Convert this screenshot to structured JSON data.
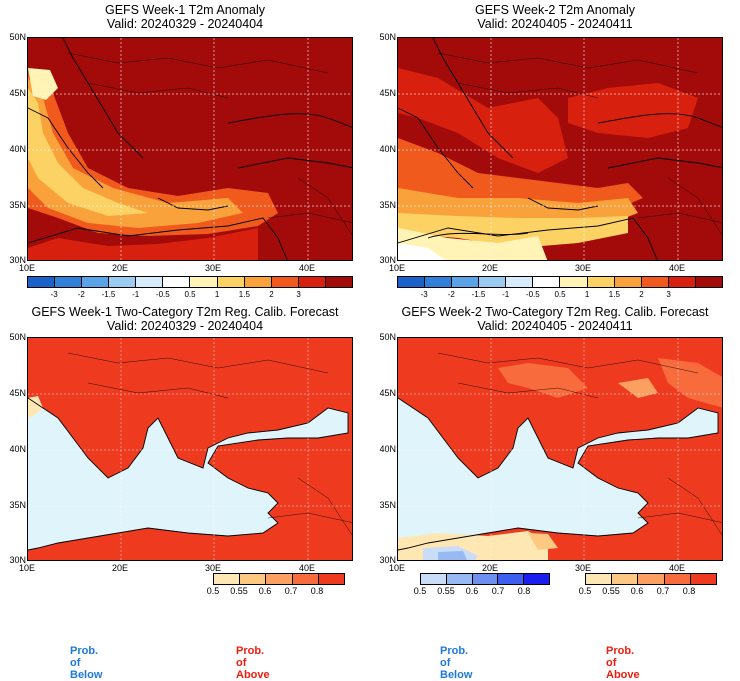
{
  "panels": [
    {
      "title": "GEFS Week-1 T2m Anomaly",
      "valid": "Valid: 20240329 - 20240404"
    },
    {
      "title": "GEFS Week-2 T2m Anomaly",
      "valid": "Valid: 20240405 - 20240411"
    },
    {
      "title": "GEFS Week-1 Two-Category T2m Reg. Calib. Forecast",
      "valid": "Valid: 20240329 - 20240404"
    },
    {
      "title": "GEFS Week-2 Two-Category T2m Reg. Calib. Forecast",
      "valid": "Valid: 20240405 - 20240411"
    }
  ],
  "axes": {
    "lat_labels": [
      "50N",
      "45N",
      "40N",
      "35N",
      "30N"
    ],
    "lon_labels": [
      "10E",
      "20E",
      "30E",
      "40E"
    ]
  },
  "anomaly_colorbar": {
    "ticks": [
      "-3",
      "-2",
      "-1.5",
      "-1",
      "-0.5",
      "0.5",
      "1",
      "1.5",
      "2",
      "3"
    ],
    "colors": [
      "#1a62c9",
      "#2f80d8",
      "#5aa3e6",
      "#9ccbf2",
      "#d6ecfb",
      "#ffffff",
      "#fff3b5",
      "#fdd265",
      "#f9a13a",
      "#f05a1c",
      "#d8200e",
      "#a30b0b"
    ]
  },
  "prob_above": {
    "ticks": [
      "0.5",
      "0.55",
      "0.6",
      "0.7",
      "0.8"
    ],
    "colors": [
      "#ffe7b3",
      "#fdc982",
      "#fca062",
      "#f76b3c",
      "#ee3a1f"
    ],
    "label": "Prob. of Above",
    "label_color": "#ee1c0e"
  },
  "prob_below": {
    "ticks": [
      "0.5",
      "0.55",
      "0.6",
      "0.7",
      "0.8"
    ],
    "colors": [
      "#c9dcf8",
      "#98b9f2",
      "#6f8ff0",
      "#3d5ff0",
      "#1a1ff0"
    ],
    "label": "Prob. of Below",
    "label_color": "#1e78d8"
  },
  "map_colors": {
    "hot": "#a30b0b",
    "warm": "#d8200e",
    "mid": "#f05a1c",
    "mild": "#f9a13a",
    "pale": "#fdd265",
    "cream": "#fff3b5",
    "sea": "#dff4fb",
    "prob_red": "#ee3a1f"
  }
}
